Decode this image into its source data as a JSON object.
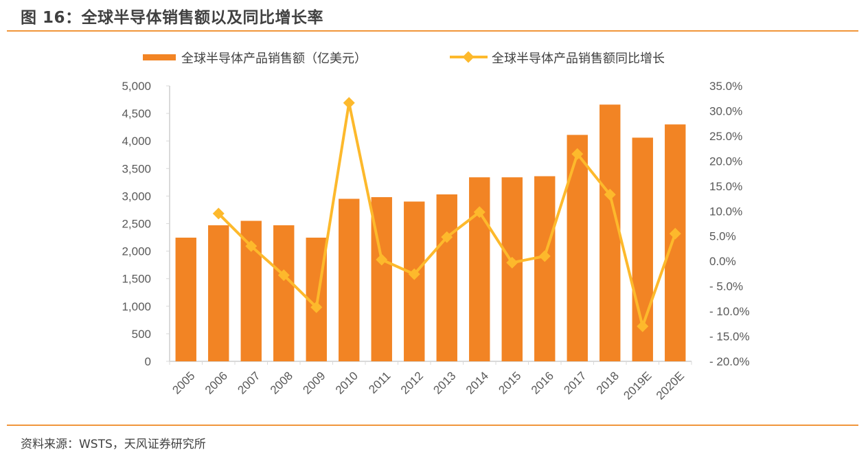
{
  "header": {
    "title": "图 16：全球半导体销售额以及同比增长率"
  },
  "footer": {
    "source": "资料来源：WSTS，天风证券研究所"
  },
  "colors": {
    "bar": "#f28424",
    "line": "#fdb92c",
    "rule": "#f0953a",
    "axis": "#d9d9d9"
  },
  "chart_data": {
    "type": "bar",
    "title": "全球半导体销售额以及同比增长率",
    "categories": [
      "2005",
      "2006",
      "2007",
      "2008",
      "2009",
      "2010",
      "2011",
      "2012",
      "2013",
      "2014",
      "2015",
      "2016",
      "2017",
      "2018",
      "2019E",
      "2020E"
    ],
    "series": [
      {
        "name": "全球半导体产品销售额（亿美元）",
        "type": "bar",
        "axis": "left",
        "values": [
          2245,
          2470,
          2550,
          2470,
          2245,
          2950,
          2980,
          2900,
          3030,
          3340,
          3340,
          3360,
          4110,
          4660,
          4060,
          4300
        ]
      },
      {
        "name": "全球半导体产品销售额同比增长",
        "type": "line",
        "axis": "right",
        "unit": "%",
        "values": [
          null,
          9.5,
          3.0,
          -2.8,
          -9.2,
          31.6,
          0.3,
          -2.6,
          4.8,
          9.8,
          -0.3,
          1.0,
          21.4,
          13.3,
          -13.0,
          5.5
        ]
      }
    ],
    "legend": {
      "position": "top",
      "bar_label": "全球半导体产品销售额（亿美元）",
      "line_label": "全球半导体产品销售额同比增长"
    },
    "y_left": {
      "ylim": [
        0,
        5000
      ],
      "ticks": [
        0,
        500,
        1000,
        1500,
        2000,
        2500,
        3000,
        3500,
        4000,
        4500,
        5000
      ],
      "tick_labels": [
        "0",
        "500",
        "1,000",
        "1,500",
        "2,000",
        "2,500",
        "3,000",
        "3,500",
        "4,000",
        "4,500",
        "5,000"
      ]
    },
    "y_right": {
      "ylim": [
        -20,
        35
      ],
      "ticks": [
        -20,
        -15,
        -10,
        -5,
        0,
        5,
        10,
        15,
        20,
        25,
        30,
        35
      ],
      "tick_labels": [
        "-20.0%",
        "-15.0%",
        "-10.0%",
        "-5.0%",
        "0.0%",
        "5.0%",
        "10.0%",
        "15.0%",
        "20.0%",
        "25.0%",
        "30.0%",
        "35.0%"
      ]
    },
    "xlabel": "",
    "ylabel": "",
    "grid": false
  }
}
